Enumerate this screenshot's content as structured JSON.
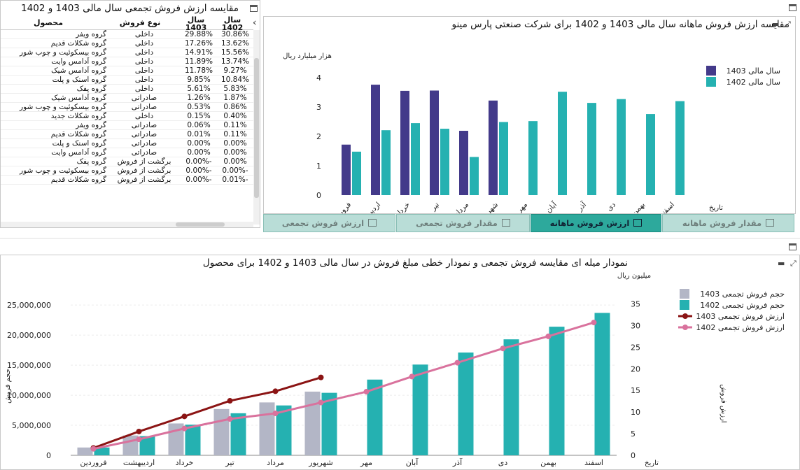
{
  "table_panel": {
    "title": "مقایسه ارزش فروش تجمعی سال مالی 1403 و 1402",
    "headers": {
      "y1402": "سال 1402",
      "y1403": "سال 1403",
      "type": "نوع فروش",
      "product": "محصول"
    },
    "rows": [
      {
        "y1402": "30.86%",
        "y1403": "29.88%",
        "type": "داخلی",
        "product": "گروه ویفر"
      },
      {
        "y1402": "13.62%",
        "y1403": "17.26%",
        "type": "داخلی",
        "product": "گروه شکلات قدیم"
      },
      {
        "y1402": "15.56%",
        "y1403": "14.91%",
        "type": "داخلی",
        "product": "گروه بیسکوئیت و چوب شور"
      },
      {
        "y1402": "13.74%",
        "y1403": "11.89%",
        "type": "داخلی",
        "product": "گروه آدامس وایت"
      },
      {
        "y1402": "9.27%",
        "y1403": "11.78%",
        "type": "داخلی",
        "product": "گروه آدامس شیک"
      },
      {
        "y1402": "10.84%",
        "y1403": "9.85%",
        "type": "داخلی",
        "product": "گروه اسنک و پلت"
      },
      {
        "y1402": "5.83%",
        "y1403": "5.61%",
        "type": "داخلی",
        "product": "گروه پفک"
      },
      {
        "y1402": "1.87%",
        "y1403": "1.26%",
        "type": "صادراتی",
        "product": "گروه آدامس شیک"
      },
      {
        "y1402": "0.86%",
        "y1403": "0.53%",
        "type": "صادراتی",
        "product": "گروه بیسکوئیت و چوب شور"
      },
      {
        "y1402": "0.40%",
        "y1403": "0.15%",
        "type": "داخلی",
        "product": "گروه شکلات جدید"
      },
      {
        "y1402": "0.11%",
        "y1403": "0.06%",
        "type": "صادراتی",
        "product": "گروه ویفر"
      },
      {
        "y1402": "0.11%",
        "y1403": "0.01%",
        "type": "صادراتی",
        "product": "گروه شکلات قدیم"
      },
      {
        "y1402": "0.00%",
        "y1403": "0.00%",
        "type": "صادراتی",
        "product": "گروه اسنک و پلت"
      },
      {
        "y1402": "0.00%",
        "y1403": "0.00%",
        "type": "صادراتی",
        "product": "گروه آدامس وایت"
      },
      {
        "y1402": "0.00%",
        "y1403": "-0.00%",
        "type": "برگشت از فروش",
        "product": "گروه پفک"
      },
      {
        "y1402": "-0.00%",
        "y1403": "-0.00%",
        "type": "برگشت از فروش",
        "product": "گروه بیسکوئیت و چوب شور"
      },
      {
        "y1402": "-0.01%",
        "y1403": "-0.00%",
        "type": "برگشت از فروش",
        "product": "گروه شکلات قدیم"
      }
    ]
  },
  "monthly_panel": {
    "title": "مقایسه ارزش فروش ماهانه سال مالی 1403 و 1402 برای شرکت صنعتی پارس مینو",
    "tabs": [
      "مقدار فروش ماهانه",
      "ارزش فروش ماهانه",
      "مقدار فروش تجمعی",
      "ارزش فروش تجمعی"
    ],
    "active_tab": "ارزش فروش ماهانه"
  },
  "cumulative_panel": {
    "title": "نمودار میله ای مقایسه فروش تجمعی و نمودار خطی مبلغ فروش در سال مالی 1403 و 1402 برای محصول"
  },
  "chart_data": [
    {
      "type": "bar",
      "title": "مقایسه ارزش فروش ماهانه سال مالی 1403 و 1402 برای شرکت صنعتی پارس مینو",
      "ylabel": "هزار میلیارد ریال",
      "xlabel": "تاریخ",
      "ylim": [
        0,
        4
      ],
      "yticks": [
        "0",
        "1",
        "2",
        "3",
        "4"
      ],
      "categories": [
        "فروردین",
        "اردیبهشت",
        "خرداد",
        "تیر",
        "مرداد",
        "شهریور",
        "مهر",
        "آبان",
        "آذر",
        "دی",
        "بهمن",
        "اسفند"
      ],
      "legend_position": "top-right",
      "series": [
        {
          "name": "سال مالی 1403",
          "color": "#433a8a",
          "values": [
            1.72,
            3.76,
            3.55,
            3.56,
            2.19,
            3.22,
            null,
            null,
            null,
            null,
            null,
            null
          ]
        },
        {
          "name": "سال مالی 1402",
          "color": "#25b1b1",
          "values": [
            1.48,
            2.21,
            2.45,
            2.26,
            1.3,
            2.49,
            2.52,
            3.52,
            3.14,
            3.27,
            2.76,
            3.2
          ]
        }
      ]
    },
    {
      "type": "bar",
      "title": "نمودار میله ای مقایسه فروش تجمعی و نمودار خطی مبلغ فروش در سال مالی 1403 و 1402 برای محصول",
      "ylabel": "حجم فروش",
      "y2label": "ارزش فروش",
      "y2unit": "میلیون ریال",
      "xlabel": "تاریخ",
      "ylim": [
        0,
        27000000
      ],
      "y2lim": [
        0,
        37.5
      ],
      "yticks": [
        "0",
        "5,000,000",
        "10,000,000",
        "15,000,000",
        "20,000,000",
        "25,000,000"
      ],
      "y2ticks": [
        "0",
        "5",
        "10",
        "15",
        "20",
        "25",
        "30",
        "35"
      ],
      "categories": [
        "فروردین",
        "اردیبهشت",
        "خرداد",
        "تیر",
        "مرداد",
        "شهریور",
        "مهر",
        "آبان",
        "آذر",
        "دی",
        "بهمن",
        "اسفند"
      ],
      "legend_position": "top-right",
      "series": [
        {
          "name": "حجم فروش تجمعی 1403",
          "kind": "bar",
          "color": "#b3b6c6",
          "values": [
            1300000,
            3300000,
            5300000,
            7700000,
            8800000,
            10600000,
            null,
            null,
            null,
            null,
            null,
            null
          ]
        },
        {
          "name": "حجم فروش تجمعی 1402",
          "kind": "bar",
          "color": "#25b1b1",
          "values": [
            1300000,
            3200000,
            5100000,
            7000000,
            8300000,
            10400000,
            12600000,
            15100000,
            17100000,
            19300000,
            21400000,
            23700000
          ]
        },
        {
          "name": "ارزش فروش تجمعی 1403",
          "kind": "line",
          "color": "#8b1414",
          "values": [
            1.7,
            5.5,
            9.0,
            12.6,
            14.8,
            18.0,
            null,
            null,
            null,
            null,
            null,
            null
          ]
        },
        {
          "name": "ارزش فروش تجمعی 1402",
          "kind": "line",
          "color": "#d9729d",
          "values": [
            1.5,
            3.7,
            6.2,
            8.4,
            9.7,
            12.2,
            14.7,
            18.2,
            21.4,
            24.7,
            27.5,
            30.7
          ]
        }
      ]
    }
  ]
}
